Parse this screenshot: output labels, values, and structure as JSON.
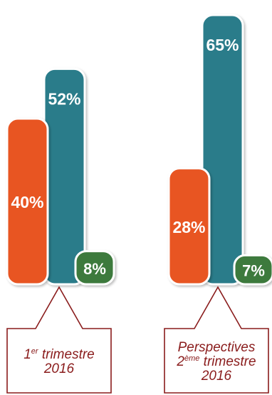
{
  "chart_data": {
    "type": "bar",
    "categories": [
      {
        "lines": [
          {
            "main": "1",
            "sup": "er",
            "rest": " trimestre"
          },
          {
            "main": "2016"
          }
        ]
      },
      {
        "lines": [
          {
            "main": "Perspectives"
          },
          {
            "main": "2",
            "sup": "ème",
            "rest": " trimestre"
          },
          {
            "main": "2016"
          }
        ]
      }
    ],
    "series": [
      {
        "values": [
          40,
          28
        ],
        "labels": [
          "40%",
          "28%"
        ],
        "color": "#e85424"
      },
      {
        "values": [
          52,
          65
        ],
        "labels": [
          "52%",
          "65%"
        ],
        "color": "#2a7c8a"
      },
      {
        "values": [
          8,
          7
        ],
        "labels": [
          "8%",
          "7%"
        ],
        "color": "#3e7a3c"
      }
    ],
    "grid": false,
    "legend": "none"
  },
  "colors": {
    "callout_border": "#8a1c1c",
    "callout_text": "#8a1c1c",
    "background": "#ffffff"
  }
}
